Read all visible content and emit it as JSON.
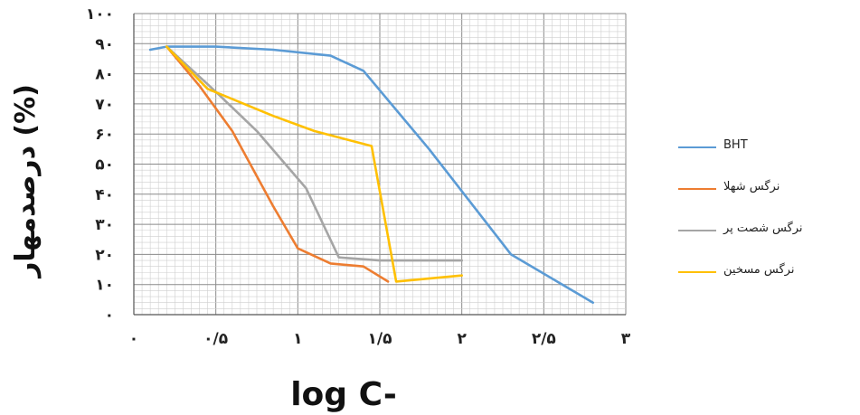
{
  "chart_data": {
    "type": "line",
    "xlabel": "log C-",
    "ylabel": "درصدمهار (%)",
    "xlim": [
      0,
      3
    ],
    "ylim": [
      0,
      100
    ],
    "x_ticks": [
      0,
      0.5,
      1,
      1.5,
      2,
      2.5,
      3
    ],
    "x_tick_labels": [
      "۰",
      "۰/۵",
      "۱",
      "۱/۵",
      "۲",
      "۲/۵",
      "۳"
    ],
    "y_ticks": [
      0,
      10,
      20,
      30,
      40,
      50,
      60,
      70,
      80,
      90,
      100
    ],
    "y_tick_labels": [
      "۰",
      "۱۰",
      "۲۰",
      "۳۰",
      "۴۰",
      "۵۰",
      "۶۰",
      "۷۰",
      "۸۰",
      "۹۰",
      "۱۰۰"
    ],
    "grid": true,
    "legend_position": "right",
    "series": [
      {
        "name": "BHT",
        "color": "#5B9BD5",
        "x": [
          0.1,
          0.2,
          0.5,
          0.85,
          1.2,
          1.4,
          1.8,
          2.3,
          2.8
        ],
        "y": [
          88,
          89,
          89,
          88,
          86,
          81,
          55,
          20,
          4
        ]
      },
      {
        "name": "نرگس شهلا",
        "color": "#ED7D31",
        "x": [
          0.2,
          0.4,
          0.6,
          0.85,
          1.0,
          1.2,
          1.4,
          1.55
        ],
        "y": [
          89,
          76,
          61,
          36,
          22,
          17,
          16,
          11
        ]
      },
      {
        "name": "نرگس شصت پر",
        "color": "#A5A5A5",
        "x": [
          0.2,
          0.5,
          0.75,
          1.05,
          1.25,
          1.5,
          1.75,
          2.0
        ],
        "y": [
          89,
          74,
          61,
          42,
          19,
          18,
          18,
          18
        ]
      },
      {
        "name": "نرگس مسخین",
        "color": "#FFC000",
        "x": [
          0.2,
          0.45,
          0.85,
          1.1,
          1.45,
          1.6,
          2.0
        ],
        "y": [
          89,
          75,
          66,
          61,
          56,
          11,
          13
        ]
      }
    ]
  }
}
